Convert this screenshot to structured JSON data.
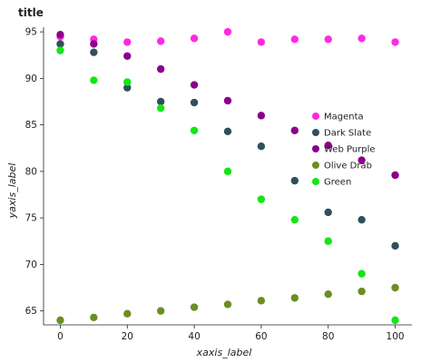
{
  "chart_data": {
    "type": "line",
    "title": "title",
    "xlabel": "xaxis_label",
    "ylabel": "yaxis_label",
    "x": [
      0,
      10,
      20,
      30,
      40,
      50,
      60,
      70,
      80,
      90,
      100
    ],
    "xlim": [
      -5,
      105
    ],
    "ylim": [
      63.5,
      95.5
    ],
    "xticks": [
      0,
      20,
      40,
      60,
      80,
      100
    ],
    "yticks": [
      65,
      70,
      75,
      80,
      85,
      90,
      95
    ],
    "grid": false,
    "legend_position": "right",
    "series": [
      {
        "name": "Magenta",
        "color": "#ff2ae0",
        "values": [
          94.5,
          94.2,
          93.9,
          94.0,
          94.3,
          95.0,
          93.9,
          94.2,
          94.2,
          94.3,
          93.9
        ]
      },
      {
        "name": "Dark Slate",
        "color": "#2f4f5a",
        "values": [
          93.7,
          92.8,
          89.0,
          87.5,
          87.4,
          84.3,
          82.7,
          79.0,
          75.6,
          74.8,
          72.0
        ]
      },
      {
        "name": "Web Purple",
        "color": "#8b008b",
        "values": [
          94.7,
          93.7,
          92.4,
          91.0,
          89.3,
          87.6,
          86.0,
          84.4,
          82.8,
          81.2,
          79.6
        ]
      },
      {
        "name": "Olive Drab",
        "color": "#6b8e23",
        "values": [
          64.0,
          64.3,
          64.7,
          65.0,
          65.4,
          65.7,
          66.1,
          66.4,
          66.8,
          67.1,
          67.5
        ]
      },
      {
        "name": "Green",
        "color": "#14e614",
        "values": [
          93.0,
          89.8,
          89.6,
          86.8,
          84.4,
          80.0,
          77.0,
          74.8,
          72.5,
          69.0,
          64.0
        ]
      }
    ]
  }
}
